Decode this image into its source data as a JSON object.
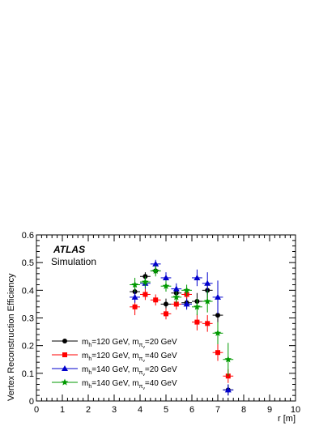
{
  "chart_data": {
    "type": "scatter",
    "xlabel": "r [m]",
    "ylabel": "Vertex Reconstruction Efficiency",
    "xlim": [
      0,
      10
    ],
    "ylim": [
      0,
      0.6
    ],
    "x_ticks": [
      "0",
      "1",
      "2",
      "3",
      "4",
      "5",
      "6",
      "7",
      "8",
      "9",
      "10"
    ],
    "y_ticks": [
      "0",
      "0.1",
      "0.2",
      "0.3",
      "0.4",
      "0.5",
      "0.6"
    ],
    "annotation": {
      "experiment": "ATLAS",
      "label": "Simulation"
    },
    "legend_placement": "bottom-left",
    "series": [
      {
        "legend": {
          "mh": "120",
          "mpi": "20"
        },
        "color": "#000000",
        "marker": "circle",
        "points": [
          {
            "x": 3.8,
            "y": 0.395,
            "yerr": 0.025
          },
          {
            "x": 4.2,
            "y": 0.45,
            "yerr": 0.015
          },
          {
            "x": 4.6,
            "y": 0.47,
            "yerr": 0.012
          },
          {
            "x": 5.0,
            "y": 0.35,
            "yerr": 0.02
          },
          {
            "x": 5.4,
            "y": 0.39,
            "yerr": 0.02
          },
          {
            "x": 5.8,
            "y": 0.355,
            "yerr": 0.02
          },
          {
            "x": 6.2,
            "y": 0.36,
            "yerr": 0.03
          },
          {
            "x": 6.6,
            "y": 0.4,
            "yerr": 0.03
          },
          {
            "x": 7.0,
            "y": 0.31,
            "yerr": 0.045
          },
          {
            "x": 7.4,
            "y": 0.04,
            "yerr": 0.02
          }
        ]
      },
      {
        "legend": {
          "mh": "120",
          "mpi": "40"
        },
        "color": "#ff0000",
        "marker": "square",
        "points": [
          {
            "x": 3.8,
            "y": 0.34,
            "yerr": 0.03
          },
          {
            "x": 4.2,
            "y": 0.385,
            "yerr": 0.02
          },
          {
            "x": 4.6,
            "y": 0.365,
            "yerr": 0.02
          },
          {
            "x": 5.0,
            "y": 0.315,
            "yerr": 0.02
          },
          {
            "x": 5.4,
            "y": 0.35,
            "yerr": 0.02
          },
          {
            "x": 5.8,
            "y": 0.385,
            "yerr": 0.02
          },
          {
            "x": 6.2,
            "y": 0.285,
            "yerr": 0.03
          },
          {
            "x": 6.6,
            "y": 0.28,
            "yerr": 0.03
          },
          {
            "x": 7.0,
            "y": 0.175,
            "yerr": 0.03
          },
          {
            "x": 7.4,
            "y": 0.09,
            "yerr": 0.025
          }
        ]
      },
      {
        "legend": {
          "mh": "140",
          "mpi": "20"
        },
        "color": "#0000cc",
        "marker": "triangle",
        "points": [
          {
            "x": 3.8,
            "y": 0.375,
            "yerr": 0.02
          },
          {
            "x": 4.2,
            "y": 0.425,
            "yerr": 0.02
          },
          {
            "x": 4.6,
            "y": 0.495,
            "yerr": 0.015
          },
          {
            "x": 5.0,
            "y": 0.445,
            "yerr": 0.02
          },
          {
            "x": 5.4,
            "y": 0.405,
            "yerr": 0.02
          },
          {
            "x": 5.8,
            "y": 0.35,
            "yerr": 0.02
          },
          {
            "x": 6.2,
            "y": 0.445,
            "yerr": 0.03
          },
          {
            "x": 6.6,
            "y": 0.425,
            "yerr": 0.04
          },
          {
            "x": 7.0,
            "y": 0.375,
            "yerr": 0.06
          },
          {
            "x": 7.4,
            "y": 0.04,
            "yerr": 0.02
          }
        ]
      },
      {
        "legend": {
          "mh": "140",
          "mpi": "40"
        },
        "color": "#009900",
        "marker": "star",
        "points": [
          {
            "x": 3.8,
            "y": 0.42,
            "yerr": 0.025
          },
          {
            "x": 4.2,
            "y": 0.43,
            "yerr": 0.02
          },
          {
            "x": 4.6,
            "y": 0.47,
            "yerr": 0.02
          },
          {
            "x": 5.0,
            "y": 0.415,
            "yerr": 0.02
          },
          {
            "x": 5.4,
            "y": 0.375,
            "yerr": 0.02
          },
          {
            "x": 5.8,
            "y": 0.4,
            "yerr": 0.02
          },
          {
            "x": 6.2,
            "y": 0.34,
            "yerr": 0.03
          },
          {
            "x": 6.6,
            "y": 0.36,
            "yerr": 0.04
          },
          {
            "x": 7.0,
            "y": 0.245,
            "yerr": 0.04
          },
          {
            "x": 7.4,
            "y": 0.15,
            "yerr": 0.06
          }
        ]
      }
    ]
  }
}
